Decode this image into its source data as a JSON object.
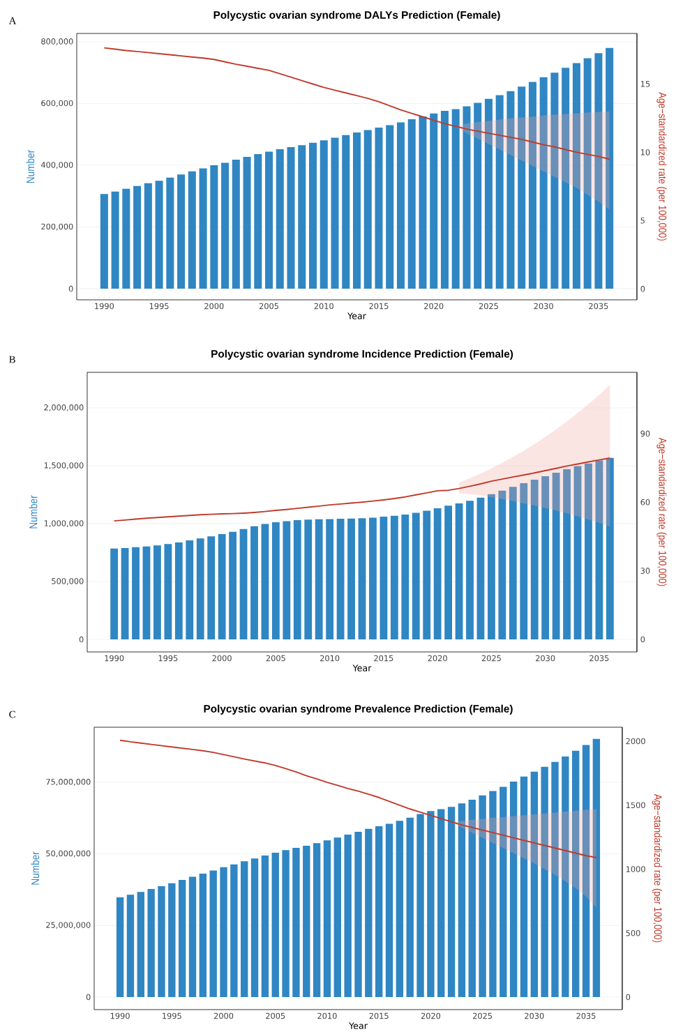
{
  "chart_data": [
    {
      "type": "bar",
      "title": "Polycystic ovarian syndrome DALYs Prediction (Female)",
      "xlabel": "Year",
      "ylabel": "Number",
      "y2label": "Age−standardized rate (per 100,000)",
      "annotations": [
        "A"
      ],
      "grid": "y",
      "x": [
        1990,
        1991,
        1992,
        1993,
        1994,
        1995,
        1996,
        1997,
        1998,
        1999,
        2000,
        2001,
        2002,
        2003,
        2004,
        2005,
        2006,
        2007,
        2008,
        2009,
        2010,
        2011,
        2012,
        2013,
        2014,
        2015,
        2016,
        2017,
        2018,
        2019,
        2020,
        2021,
        2022,
        2023,
        2024,
        2025,
        2026,
        2027,
        2028,
        2029,
        2030,
        2031,
        2032,
        2033,
        2034,
        2035,
        2036
      ],
      "xlim": [
        1987.5,
        2038.5
      ],
      "xticks": [
        1990,
        1995,
        2000,
        2005,
        2010,
        2015,
        2020,
        2025,
        2030,
        2035
      ],
      "ylim": [
        -36000,
        827000
      ],
      "yticks": [
        0,
        {
          "value": 200000,
          "label": "200,000"
        },
        {
          "value": 400000,
          "label": "400,000"
        },
        {
          "value": 600000,
          "label": "600,000"
        },
        {
          "value": 800000,
          "label": "800,000"
        }
      ],
      "y2lim": [
        -0.8,
        18.7
      ],
      "y2ticks": [
        0,
        5,
        10,
        15
      ],
      "series": [
        {
          "color": "#2f86c3",
          "values": [
            307000,
            315000,
            324000,
            333000,
            342000,
            350000,
            360000,
            370000,
            380000,
            390000,
            400000,
            408000,
            418000,
            427000,
            436000,
            444000,
            452000,
            459000,
            465000,
            473000,
            481000,
            489000,
            498000,
            506000,
            514000,
            522000,
            530000,
            539000,
            549000,
            558000,
            568000,
            576000,
            582000,
            591000,
            602000,
            615000,
            627000,
            640000,
            655000,
            670000,
            685000,
            700000,
            716000,
            731000,
            747000,
            763000,
            780000
          ]
        },
        {
          "type": "line",
          "axis": "y2",
          "color": "#c0392b",
          "values": [
            17.65,
            17.55,
            17.45,
            17.38,
            17.3,
            17.22,
            17.14,
            17.06,
            16.98,
            16.9,
            16.8,
            16.62,
            16.45,
            16.3,
            16.15,
            16.0,
            15.75,
            15.5,
            15.25,
            15.0,
            14.75,
            14.55,
            14.35,
            14.15,
            13.95,
            13.7,
            13.4,
            13.1,
            12.85,
            12.6,
            12.35,
            12.1,
            11.9,
            11.7,
            11.55,
            11.4,
            11.25,
            11.1,
            10.95,
            10.75,
            10.55,
            10.4,
            10.2,
            10.0,
            9.85,
            9.7,
            9.5
          ],
          "lower": [
            null,
            null,
            null,
            null,
            null,
            null,
            null,
            null,
            null,
            null,
            null,
            null,
            null,
            null,
            null,
            null,
            null,
            null,
            null,
            null,
            null,
            null,
            null,
            null,
            null,
            null,
            null,
            null,
            null,
            null,
            null,
            null,
            11.9,
            11.4,
            11.0,
            10.6,
            10.2,
            9.8,
            9.4,
            9.0,
            8.6,
            8.2,
            7.8,
            7.4,
            6.9,
            6.4,
            5.8
          ],
          "upper": [
            null,
            null,
            null,
            null,
            null,
            null,
            null,
            null,
            null,
            null,
            null,
            null,
            null,
            null,
            null,
            null,
            null,
            null,
            null,
            null,
            null,
            null,
            null,
            null,
            null,
            null,
            null,
            null,
            null,
            null,
            null,
            null,
            11.9,
            12.1,
            12.2,
            12.3,
            12.4,
            12.5,
            12.55,
            12.6,
            12.7,
            12.75,
            12.8,
            12.85,
            12.9,
            12.95,
            13.0
          ]
        }
      ]
    },
    {
      "type": "bar",
      "title": "Polycystic ovarian syndrome Incidence Prediction (Female)",
      "xlabel": "Year",
      "ylabel": "Number",
      "y2label": "Age−standardized rate (per 100,000)",
      "annotations": [
        "B"
      ],
      "grid": "y",
      "x": [
        1990,
        1991,
        1992,
        1993,
        1994,
        1995,
        1996,
        1997,
        1998,
        1999,
        2000,
        2001,
        2002,
        2003,
        2004,
        2005,
        2006,
        2007,
        2008,
        2009,
        2010,
        2011,
        2012,
        2013,
        2014,
        2015,
        2016,
        2017,
        2018,
        2019,
        2020,
        2021,
        2022,
        2023,
        2024,
        2025,
        2026,
        2027,
        2028,
        2029,
        2030,
        2031,
        2032,
        2033,
        2034,
        2035,
        2036
      ],
      "xlim": [
        1987.5,
        2038.5
      ],
      "xticks": [
        1990,
        1995,
        2000,
        2005,
        2010,
        2015,
        2020,
        2025,
        2030,
        2035
      ],
      "ylim": [
        -108000,
        2307000
      ],
      "yticks": [
        0,
        {
          "value": 500000,
          "label": "500,000"
        },
        {
          "value": 1000000,
          "label": "1,000,000"
        },
        {
          "value": 1500000,
          "label": "1,500,000"
        },
        {
          "value": 2000000,
          "label": "2,000,000"
        }
      ],
      "y2lim": [
        -5.5,
        116.8
      ],
      "y2ticks": [
        0,
        30,
        60,
        90
      ],
      "series": [
        {
          "color": "#2f86c3",
          "values": [
            785000,
            790000,
            797000,
            803000,
            812000,
            824000,
            838000,
            855000,
            872000,
            890000,
            910000,
            930000,
            953000,
            978000,
            997000,
            1012000,
            1022000,
            1030000,
            1035000,
            1038000,
            1040000,
            1042000,
            1044000,
            1047000,
            1052000,
            1060000,
            1068000,
            1078000,
            1093000,
            1112000,
            1132000,
            1155000,
            1175000,
            1197000,
            1225000,
            1255000,
            1285000,
            1318000,
            1350000,
            1380000,
            1410000,
            1440000,
            1470000,
            1497000,
            1520000,
            1545000,
            1568000
          ]
        },
        {
          "type": "line",
          "axis": "y2",
          "color": "#c0392b",
          "values": [
            51.8,
            52.2,
            52.6,
            53.0,
            53.3,
            53.6,
            53.9,
            54.2,
            54.5,
            54.7,
            54.9,
            55.0,
            55.2,
            55.5,
            55.9,
            56.4,
            56.8,
            57.3,
            57.8,
            58.3,
            58.8,
            59.2,
            59.6,
            60.0,
            60.5,
            61.0,
            61.6,
            62.3,
            63.2,
            64.1,
            65.0,
            65.2,
            66.0,
            67.0,
            68.0,
            69.2,
            70.1,
            71.0,
            71.9,
            72.8,
            73.8,
            74.8,
            75.8,
            76.7,
            77.6,
            78.5,
            79.3
          ],
          "lower": [
            null,
            null,
            null,
            null,
            null,
            null,
            null,
            null,
            null,
            null,
            null,
            null,
            null,
            null,
            null,
            null,
            null,
            null,
            null,
            null,
            null,
            null,
            null,
            null,
            null,
            null,
            null,
            null,
            null,
            null,
            null,
            null,
            64.0,
            63.5,
            63.0,
            62.2,
            61.4,
            60.5,
            59.5,
            58.5,
            57.4,
            56.3,
            55.1,
            53.8,
            52.4,
            51.0,
            49.4
          ],
          "upper": [
            null,
            null,
            null,
            null,
            null,
            null,
            null,
            null,
            null,
            null,
            null,
            null,
            null,
            null,
            null,
            null,
            null,
            null,
            null,
            null,
            null,
            null,
            null,
            null,
            null,
            null,
            null,
            null,
            null,
            null,
            null,
            null,
            68.5,
            70.5,
            72.5,
            74.8,
            77.2,
            79.8,
            82.5,
            85.4,
            88.5,
            91.8,
            95.3,
            99.0,
            102.9,
            107.0,
            111.3
          ]
        }
      ]
    },
    {
      "type": "bar",
      "title": "Polycystic ovarian syndrome Prevalence Prediction (Female)",
      "xlabel": "Year",
      "ylabel": "Number",
      "y2label": "Age−standardized rate (per 100,000)",
      "annotations": [
        "C"
      ],
      "grid": "y",
      "x": [
        1990,
        1991,
        1992,
        1993,
        1994,
        1995,
        1996,
        1997,
        1998,
        1999,
        2000,
        2001,
        2002,
        2003,
        2004,
        2005,
        2006,
        2007,
        2008,
        2009,
        2010,
        2011,
        2012,
        2013,
        2014,
        2015,
        2016,
        2017,
        2018,
        2019,
        2020,
        2021,
        2022,
        2023,
        2024,
        2025,
        2026,
        2027,
        2028,
        2029,
        2030,
        2031,
        2032,
        2033,
        2034,
        2035,
        2036
      ],
      "xlim": [
        1987.5,
        2038.5
      ],
      "xticks": [
        1990,
        1995,
        2000,
        2005,
        2010,
        2015,
        2020,
        2025,
        2030,
        2035
      ],
      "ylim": [
        -4400000,
        94200000
      ],
      "yticks": [
        0,
        {
          "value": 25000000,
          "label": "25,000,000"
        },
        {
          "value": 50000000,
          "label": "50,000,000"
        },
        {
          "value": 75000000,
          "label": "75,000,000"
        }
      ],
      "y2lim": [
        -98,
        2109
      ],
      "y2ticks": [
        0,
        500,
        1000,
        1500,
        2000
      ],
      "series": [
        {
          "color": "#2f86c3",
          "values": [
            34800000,
            35700000,
            36700000,
            37700000,
            38700000,
            39700000,
            40900000,
            42000000,
            43100000,
            44200000,
            45300000,
            46300000,
            47400000,
            48400000,
            49400000,
            50400000,
            51300000,
            52100000,
            52800000,
            53700000,
            54700000,
            55700000,
            56700000,
            57700000,
            58700000,
            59600000,
            60500000,
            61500000,
            62600000,
            63900000,
            64900000,
            65600000,
            66400000,
            67600000,
            68900000,
            70400000,
            71900000,
            73400000,
            75200000,
            77000000,
            78700000,
            80400000,
            82100000,
            84000000,
            86000000,
            88000000,
            90100000
          ]
        },
        {
          "type": "line",
          "axis": "y2",
          "color": "#c0392b",
          "values": [
            2007,
            1995,
            1985,
            1975,
            1965,
            1955,
            1945,
            1935,
            1925,
            1912,
            1895,
            1878,
            1860,
            1845,
            1830,
            1810,
            1785,
            1760,
            1730,
            1705,
            1678,
            1655,
            1630,
            1610,
            1585,
            1560,
            1530,
            1500,
            1470,
            1445,
            1420,
            1395,
            1370,
            1345,
            1325,
            1305,
            1285,
            1265,
            1245,
            1225,
            1205,
            1185,
            1165,
            1145,
            1125,
            1105,
            1090
          ],
          "lower": [
            null,
            null,
            null,
            null,
            null,
            null,
            null,
            null,
            null,
            null,
            null,
            null,
            null,
            null,
            null,
            null,
            null,
            null,
            null,
            null,
            null,
            null,
            null,
            null,
            null,
            null,
            null,
            null,
            null,
            null,
            null,
            null,
            1370,
            1325,
            1285,
            1245,
            1205,
            1165,
            1125,
            1085,
            1045,
            1000,
            955,
            905,
            850,
            785,
            700
          ],
          "upper": [
            null,
            null,
            null,
            null,
            null,
            null,
            null,
            null,
            null,
            null,
            null,
            null,
            null,
            null,
            null,
            null,
            null,
            null,
            null,
            null,
            null,
            null,
            null,
            null,
            null,
            null,
            null,
            null,
            null,
            null,
            null,
            null,
            1370,
            1378,
            1385,
            1393,
            1400,
            1407,
            1414,
            1421,
            1428,
            1435,
            1442,
            1449,
            1456,
            1463,
            1470
          ]
        }
      ]
    }
  ]
}
